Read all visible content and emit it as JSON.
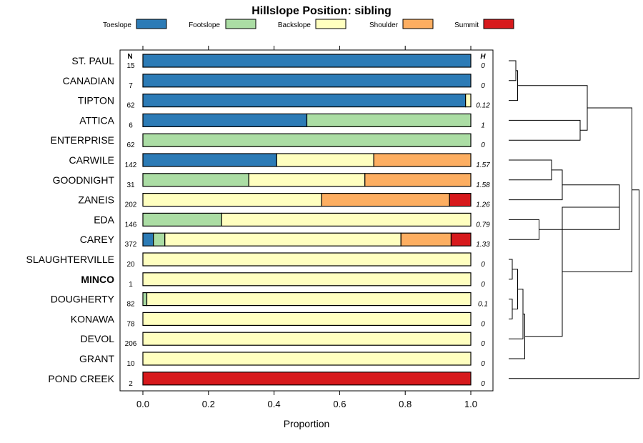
{
  "chart_data": {
    "type": "stacked-horizontal-bar",
    "title": "Hillslope Position: sibling",
    "xlabel": "Proportion",
    "xlim": [
      0,
      1
    ],
    "xticks": [
      "0.0",
      "0.2",
      "0.4",
      "0.6",
      "0.8",
      "1.0"
    ],
    "n_header": "N",
    "h_header": "H",
    "legend": [
      {
        "name": "Toeslope",
        "color": "#2c7bb6"
      },
      {
        "name": "Footslope",
        "color": "#abdda4"
      },
      {
        "name": "Backslope",
        "color": "#ffffbf"
      },
      {
        "name": "Shoulder",
        "color": "#fdae61"
      },
      {
        "name": "Summit",
        "color": "#d7191c"
      }
    ],
    "rows": [
      {
        "name": "ST. PAUL",
        "n": "15",
        "h": "0",
        "bold": false,
        "values": [
          1.0,
          0,
          0,
          0,
          0
        ]
      },
      {
        "name": "CANADIAN",
        "n": "7",
        "h": "0",
        "bold": false,
        "values": [
          1.0,
          0,
          0,
          0,
          0
        ]
      },
      {
        "name": "TIPTON",
        "n": "62",
        "h": "0.12",
        "bold": false,
        "values": [
          0.984,
          0,
          0.016,
          0,
          0
        ]
      },
      {
        "name": "ATTICA",
        "n": "6",
        "h": "1",
        "bold": false,
        "values": [
          0.5,
          0.5,
          0,
          0,
          0
        ]
      },
      {
        "name": "ENTERPRISE",
        "n": "62",
        "h": "0",
        "bold": false,
        "values": [
          0,
          1.0,
          0,
          0,
          0
        ]
      },
      {
        "name": "CARWILE",
        "n": "142",
        "h": "1.57",
        "bold": false,
        "values": [
          0.408,
          0,
          0.296,
          0.296,
          0
        ]
      },
      {
        "name": "GOODNIGHT",
        "n": "31",
        "h": "1.58",
        "bold": false,
        "values": [
          0,
          0.323,
          0.354,
          0.323,
          0
        ]
      },
      {
        "name": "ZANEIS",
        "n": "202",
        "h": "1.26",
        "bold": false,
        "values": [
          0,
          0,
          0.545,
          0.39,
          0.065
        ]
      },
      {
        "name": "EDA",
        "n": "146",
        "h": "0.79",
        "bold": false,
        "values": [
          0,
          0.24,
          0.76,
          0,
          0
        ]
      },
      {
        "name": "CAREY",
        "n": "372",
        "h": "1.33",
        "bold": false,
        "values": [
          0.032,
          0.035,
          0.72,
          0.153,
          0.06
        ]
      },
      {
        "name": "SLAUGHTERVILLE",
        "n": "20",
        "h": "0",
        "bold": false,
        "values": [
          0,
          0,
          1.0,
          0,
          0
        ]
      },
      {
        "name": "MINCO",
        "n": "1",
        "h": "0",
        "bold": true,
        "values": [
          0,
          0,
          1.0,
          0,
          0
        ]
      },
      {
        "name": "DOUGHERTY",
        "n": "82",
        "h": "0.1",
        "bold": false,
        "values": [
          0,
          0.012,
          0.988,
          0,
          0
        ]
      },
      {
        "name": "KONAWA",
        "n": "78",
        "h": "0",
        "bold": false,
        "values": [
          0,
          0,
          1.0,
          0,
          0
        ]
      },
      {
        "name": "DEVOL",
        "n": "206",
        "h": "0",
        "bold": false,
        "values": [
          0,
          0,
          1.0,
          0,
          0
        ]
      },
      {
        "name": "GRANT",
        "n": "10",
        "h": "0",
        "bold": false,
        "values": [
          0,
          0,
          1.0,
          0,
          0
        ]
      },
      {
        "name": "POND CREEK",
        "n": "2",
        "h": "0",
        "bold": false,
        "values": [
          0,
          0,
          0,
          0,
          1.0
        ]
      }
    ],
    "dendrogram": {
      "leaves": [
        "ST. PAUL",
        "CANADIAN",
        "TIPTON",
        "ATTICA",
        "ENTERPRISE",
        "CARWILE",
        "GOODNIGHT",
        "ZANEIS",
        "EDA",
        "CAREY",
        "SLAUGHTERVILLE",
        "MINCO",
        "DOUGHERTY",
        "KONAWA",
        "DEVOL",
        "GRANT",
        "POND CREEK"
      ],
      "merges": [
        {
          "a": [
            0,
            0
          ],
          "b": [
            1,
            0
          ],
          "height": 0.02
        },
        {
          "a": [
            2,
            0
          ],
          "b": [
            -1,
            0
          ],
          "height": 0.025
        },
        {
          "a": [
            3,
            0
          ],
          "b": [
            4,
            0
          ],
          "height": 0.2
        },
        {
          "a": [
            -2,
            0
          ],
          "b": [
            -3,
            0
          ],
          "height": 0.22
        },
        {
          "a": [
            5,
            0
          ],
          "b": [
            6,
            0
          ],
          "height": 0.12
        },
        {
          "a": [
            -5,
            0
          ],
          "b": [
            7,
            0
          ],
          "height": 0.15
        },
        {
          "a": [
            8,
            0
          ],
          "b": [
            9,
            0
          ],
          "height": 0.085
        },
        {
          "a": [
            -6,
            0
          ],
          "b": [
            -7,
            0
          ],
          "height": 0.31
        },
        {
          "a": [
            10,
            0
          ],
          "b": [
            11,
            0
          ],
          "height": 0.01
        },
        {
          "a": [
            12,
            0
          ],
          "b": [
            13,
            0
          ],
          "height": 0.01
        },
        {
          "a": [
            -9,
            0
          ],
          "b": [
            -10,
            0
          ],
          "height": 0.025
        },
        {
          "a": [
            -11,
            0
          ],
          "b": [
            14,
            0
          ],
          "height": 0.04
        },
        {
          "a": [
            -12,
            0
          ],
          "b": [
            15,
            0
          ],
          "height": 0.045
        },
        {
          "a": [
            -8,
            0
          ],
          "b": [
            -13,
            0
          ],
          "height": 0.15
        },
        {
          "a": [
            -4,
            0
          ],
          "b": [
            -14,
            0
          ],
          "height": 0.345
        },
        {
          "a": [
            -15,
            0
          ],
          "b": [
            16,
            0
          ],
          "height": 0.365
        }
      ]
    }
  }
}
